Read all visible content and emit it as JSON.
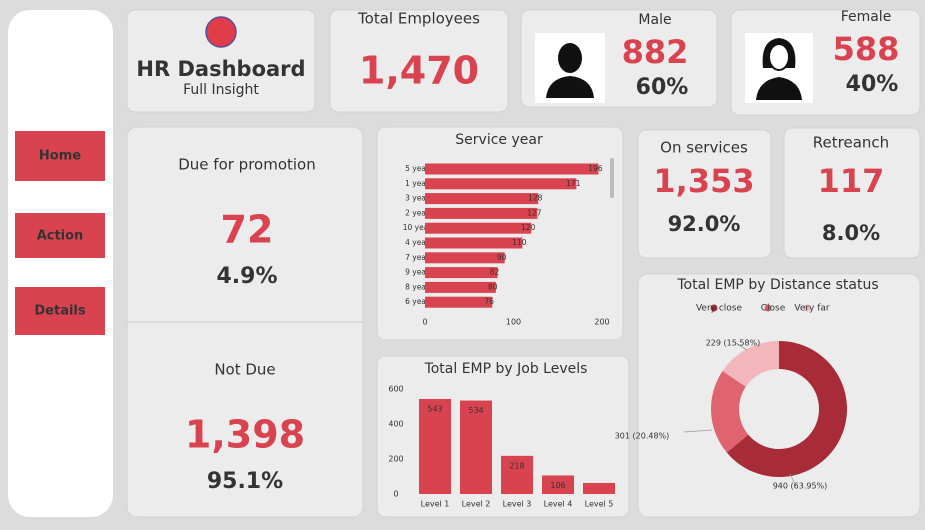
{
  "nav": [
    "Home",
    "Action",
    "Details"
  ],
  "header": {
    "title": "HR Dashboard",
    "subtitle": "Full Insight"
  },
  "cards": {
    "total": {
      "label": "Total Employees",
      "value": "1,470"
    },
    "male": {
      "label": "Male",
      "value": "882",
      "share": "60%"
    },
    "female": {
      "label": "Female",
      "value": "588",
      "share": "40%"
    },
    "promotion": {
      "label": "Due for promotion",
      "value": "72",
      "share": "4.9%"
    },
    "not_due": {
      "label": "Not Due",
      "value": "1,398",
      "share": "95.1%"
    },
    "on_services": {
      "label": "On services",
      "value": "1,353",
      "share": "92.0%"
    },
    "retreanch": {
      "label": "Retreanch",
      "value": "117",
      "share": "8.0%"
    }
  },
  "chart_data": [
    {
      "type": "bar",
      "orientation": "horizontal",
      "title": "Service year",
      "categories": [
        "5 years",
        "1 years",
        "3 years",
        "2 years",
        "10 years",
        "4 years",
        "7 years",
        "9 years",
        "8 years",
        "6 years"
      ],
      "values": [
        196,
        171,
        128,
        127,
        120,
        110,
        90,
        82,
        80,
        76
      ],
      "color": "#d9434f",
      "xlim": [
        0,
        200
      ],
      "xticks": [
        0,
        100,
        200
      ]
    },
    {
      "type": "bar",
      "orientation": "vertical",
      "title": "Total EMP by Job Levels",
      "categories": [
        "Level 1",
        "Level 2",
        "Level 3",
        "Level 4",
        "Level 5"
      ],
      "values": [
        543,
        534,
        218,
        106,
        63
      ],
      "value_labels": [
        "543",
        "534",
        "218",
        "106",
        null
      ],
      "color": "#d9434f",
      "ylim": [
        0,
        600
      ],
      "yticks": [
        0,
        200,
        400,
        600
      ]
    },
    {
      "type": "pie",
      "donut": true,
      "title": "Total EMP by Distance status",
      "categories": [
        "Very close",
        "Close",
        "Very far"
      ],
      "values": [
        940,
        301,
        229
      ],
      "value_labels": [
        "940 (63.95%)",
        "301 (20.48%)",
        "229 (15.58%)"
      ],
      "colors": [
        "#a82b38",
        "#e0646f",
        "#f2b6bb"
      ],
      "legend": "top"
    }
  ]
}
